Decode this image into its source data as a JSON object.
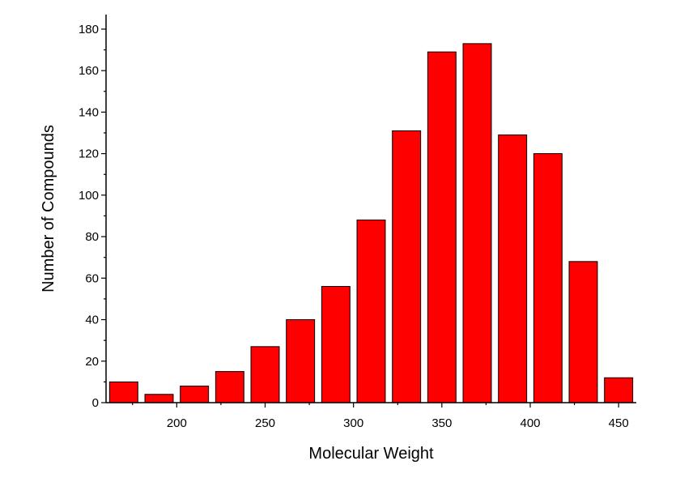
{
  "chart_data": {
    "type": "bar",
    "x": [
      170,
      190,
      210,
      230,
      250,
      270,
      290,
      310,
      330,
      350,
      370,
      390,
      410,
      430,
      450
    ],
    "values": [
      10,
      4,
      8,
      15,
      27,
      40,
      56,
      88,
      131,
      169,
      173,
      129,
      120,
      68,
      12
    ],
    "xlabel": "Molecular Weight",
    "ylabel": "Number of Compounds",
    "xlim": [
      160,
      460
    ],
    "ylim": [
      0,
      187
    ],
    "xticks": [
      200,
      250,
      300,
      350,
      400,
      450
    ],
    "yticks": [
      0,
      20,
      40,
      60,
      80,
      100,
      120,
      140,
      160,
      180
    ],
    "bar_color": "#ff0000",
    "grid": false,
    "legend": "none"
  }
}
